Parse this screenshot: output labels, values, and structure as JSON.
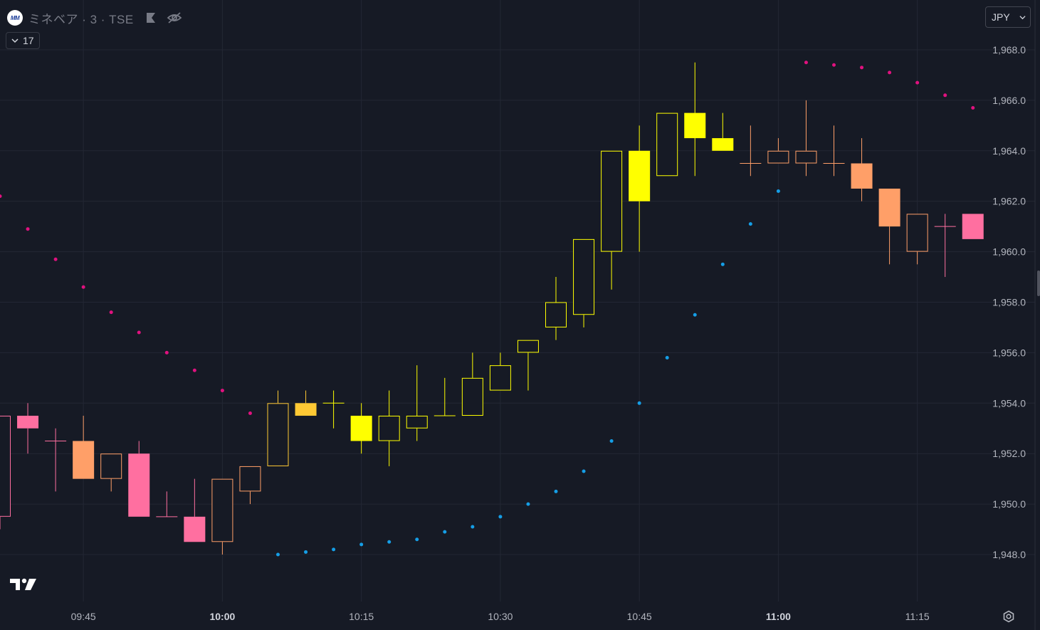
{
  "header": {
    "symbol": "ミネベア · 3 · TSE",
    "logo_text": "MM",
    "indicator_count": "17"
  },
  "price_axis": {
    "currency": "JPY"
  },
  "colors": {
    "background": "#161a25",
    "grid": "#232734",
    "axis_text": "#b2b5be",
    "upper_dots": "#e0117f",
    "lower_dots": "#159ee6",
    "pink": "#ff6fa0",
    "salmon": "#ff9f68",
    "amber": "#ffc934",
    "yellow": "#ffff00"
  },
  "chart_data": {
    "type": "candlestick",
    "interval": "3 minutes",
    "x_start": "09:36",
    "y_range": [
      1946.2,
      1969.8
    ],
    "y_ticks": [
      "1,968.0",
      "1,966.0",
      "1,964.0",
      "1,962.0",
      "1,960.0",
      "1,958.0",
      "1,956.0",
      "1,954.0",
      "1,952.0",
      "1,950.0",
      "1,948.0"
    ],
    "x_ticks": [
      {
        "label": "09:45",
        "bold": false
      },
      {
        "label": "10:00",
        "bold": true
      },
      {
        "label": "10:15",
        "bold": false
      },
      {
        "label": "10:30",
        "bold": false
      },
      {
        "label": "10:45",
        "bold": false
      },
      {
        "label": "11:00",
        "bold": true
      },
      {
        "label": "11:15",
        "bold": false
      }
    ],
    "candles": [
      {
        "time": "09:36",
        "open": 1949.5,
        "high": 1953.5,
        "low": 1949.0,
        "close": 1953.5,
        "color": "pink"
      },
      {
        "time": "09:39",
        "open": 1953.5,
        "high": 1954.0,
        "low": 1952.0,
        "close": 1953.0,
        "color": "pink"
      },
      {
        "time": "09:42",
        "open": 1952.5,
        "high": 1953.0,
        "low": 1950.5,
        "close": 1952.5,
        "color": "pink"
      },
      {
        "time": "09:45",
        "open": 1952.5,
        "high": 1953.5,
        "low": 1951.0,
        "close": 1951.0,
        "color": "salmon"
      },
      {
        "time": "09:48",
        "open": 1951.0,
        "high": 1952.0,
        "low": 1950.5,
        "close": 1952.0,
        "color": "salmon"
      },
      {
        "time": "09:51",
        "open": 1952.0,
        "high": 1952.5,
        "low": 1949.5,
        "close": 1949.5,
        "color": "pink"
      },
      {
        "time": "09:54",
        "open": 1949.5,
        "high": 1950.5,
        "low": 1949.5,
        "close": 1949.5,
        "color": "pink"
      },
      {
        "time": "09:57",
        "open": 1949.5,
        "high": 1951.0,
        "low": 1948.5,
        "close": 1948.5,
        "color": "pink"
      },
      {
        "time": "10:00",
        "open": 1948.5,
        "high": 1951.0,
        "low": 1948.0,
        "close": 1951.0,
        "color": "salmon"
      },
      {
        "time": "10:03",
        "open": 1950.5,
        "high": 1951.5,
        "low": 1950.0,
        "close": 1951.5,
        "color": "salmon"
      },
      {
        "time": "10:06",
        "open": 1951.5,
        "high": 1954.5,
        "low": 1951.5,
        "close": 1954.0,
        "color": "amber"
      },
      {
        "time": "10:09",
        "open": 1954.0,
        "high": 1954.5,
        "low": 1953.5,
        "close": 1953.5,
        "color": "amber"
      },
      {
        "time": "10:12",
        "open": 1954.0,
        "high": 1954.5,
        "low": 1953.0,
        "close": 1954.0,
        "color": "yellow"
      },
      {
        "time": "10:15",
        "open": 1953.5,
        "high": 1954.0,
        "low": 1952.0,
        "close": 1952.5,
        "color": "yellow"
      },
      {
        "time": "10:18",
        "open": 1952.5,
        "high": 1954.5,
        "low": 1951.5,
        "close": 1953.5,
        "color": "yellow"
      },
      {
        "time": "10:21",
        "open": 1953.0,
        "high": 1955.5,
        "low": 1952.5,
        "close": 1953.5,
        "color": "yellow"
      },
      {
        "time": "10:24",
        "open": 1953.5,
        "high": 1955.0,
        "low": 1953.5,
        "close": 1953.5,
        "color": "yellow"
      },
      {
        "time": "10:27",
        "open": 1953.5,
        "high": 1956.0,
        "low": 1953.5,
        "close": 1955.0,
        "color": "yellow"
      },
      {
        "time": "10:30",
        "open": 1954.5,
        "high": 1956.0,
        "low": 1954.5,
        "close": 1955.5,
        "color": "yellow"
      },
      {
        "time": "10:33",
        "open": 1956.0,
        "high": 1956.5,
        "low": 1954.5,
        "close": 1956.5,
        "color": "yellow"
      },
      {
        "time": "10:36",
        "open": 1957.0,
        "high": 1959.0,
        "low": 1956.5,
        "close": 1958.0,
        "color": "yellow"
      },
      {
        "time": "10:39",
        "open": 1957.5,
        "high": 1960.5,
        "low": 1957.0,
        "close": 1960.5,
        "color": "yellow"
      },
      {
        "time": "10:42",
        "open": 1960.0,
        "high": 1964.0,
        "low": 1958.5,
        "close": 1964.0,
        "color": "yellow"
      },
      {
        "time": "10:45",
        "open": 1964.0,
        "high": 1965.0,
        "low": 1960.0,
        "close": 1962.0,
        "color": "yellow"
      },
      {
        "time": "10:48",
        "open": 1963.0,
        "high": 1965.5,
        "low": 1963.0,
        "close": 1965.5,
        "color": "yellow"
      },
      {
        "time": "10:51",
        "open": 1965.5,
        "high": 1967.5,
        "low": 1963.0,
        "close": 1964.5,
        "color": "yellow"
      },
      {
        "time": "10:54",
        "open": 1964.5,
        "high": 1965.5,
        "low": 1964.0,
        "close": 1964.0,
        "color": "yellow"
      },
      {
        "time": "10:57",
        "open": 1963.5,
        "high": 1965.0,
        "low": 1963.0,
        "close": 1963.5,
        "color": "salmon"
      },
      {
        "time": "11:00",
        "open": 1963.5,
        "high": 1964.5,
        "low": 1963.5,
        "close": 1964.0,
        "color": "salmon"
      },
      {
        "time": "11:03",
        "open": 1963.5,
        "high": 1966.0,
        "low": 1963.0,
        "close": 1964.0,
        "color": "salmon"
      },
      {
        "time": "11:06",
        "open": 1963.5,
        "high": 1965.0,
        "low": 1963.0,
        "close": 1963.5,
        "color": "salmon"
      },
      {
        "time": "11:09",
        "open": 1963.5,
        "high": 1964.5,
        "low": 1962.0,
        "close": 1962.5,
        "color": "salmon"
      },
      {
        "time": "11:12",
        "open": 1962.5,
        "high": 1962.5,
        "low": 1959.5,
        "close": 1961.0,
        "color": "salmon"
      },
      {
        "time": "11:15",
        "open": 1960.0,
        "high": 1961.5,
        "low": 1959.5,
        "close": 1961.5,
        "color": "salmon"
      },
      {
        "time": "11:18",
        "open": 1961.0,
        "high": 1961.5,
        "low": 1959.0,
        "close": 1961.0,
        "color": "pink"
      },
      {
        "time": "11:21",
        "open": 1961.5,
        "high": 1961.5,
        "low": 1960.5,
        "close": 1960.5,
        "color": "pink"
      }
    ],
    "upper_dots": [
      {
        "time": "09:36",
        "value": 1962.2
      },
      {
        "time": "09:39",
        "value": 1960.9
      },
      {
        "time": "09:42",
        "value": 1959.7
      },
      {
        "time": "09:45",
        "value": 1958.6
      },
      {
        "time": "09:48",
        "value": 1957.6
      },
      {
        "time": "09:51",
        "value": 1956.8
      },
      {
        "time": "09:54",
        "value": 1956.0
      },
      {
        "time": "09:57",
        "value": 1955.3
      },
      {
        "time": "10:00",
        "value": 1954.5
      },
      {
        "time": "10:03",
        "value": 1953.6
      },
      {
        "time": "11:03",
        "value": 1967.5
      },
      {
        "time": "11:06",
        "value": 1967.4
      },
      {
        "time": "11:09",
        "value": 1967.3
      },
      {
        "time": "11:12",
        "value": 1967.1
      },
      {
        "time": "11:15",
        "value": 1966.7
      },
      {
        "time": "11:18",
        "value": 1966.2
      },
      {
        "time": "11:21",
        "value": 1965.7
      }
    ],
    "lower_dots": [
      {
        "time": "10:06",
        "value": 1948.0
      },
      {
        "time": "10:09",
        "value": 1948.1
      },
      {
        "time": "10:12",
        "value": 1948.2
      },
      {
        "time": "10:15",
        "value": 1948.4
      },
      {
        "time": "10:18",
        "value": 1948.5
      },
      {
        "time": "10:21",
        "value": 1948.6
      },
      {
        "time": "10:24",
        "value": 1948.9
      },
      {
        "time": "10:27",
        "value": 1949.1
      },
      {
        "time": "10:30",
        "value": 1949.5
      },
      {
        "time": "10:33",
        "value": 1950.0
      },
      {
        "time": "10:36",
        "value": 1950.5
      },
      {
        "time": "10:39",
        "value": 1951.3
      },
      {
        "time": "10:42",
        "value": 1952.5
      },
      {
        "time": "10:45",
        "value": 1954.0
      },
      {
        "time": "10:48",
        "value": 1955.8
      },
      {
        "time": "10:51",
        "value": 1957.5
      },
      {
        "time": "10:54",
        "value": 1959.5
      },
      {
        "time": "10:57",
        "value": 1961.1
      },
      {
        "time": "11:00",
        "value": 1962.4
      }
    ]
  }
}
